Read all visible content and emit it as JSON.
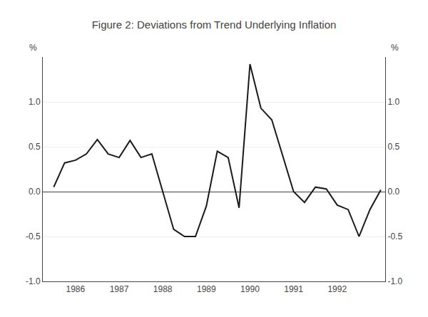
{
  "chart_data": {
    "type": "line",
    "title": "Figure 2: Deviations from Trend Underlying Inflation",
    "x": [
      1985.5,
      1985.75,
      1986.0,
      1986.25,
      1986.5,
      1986.75,
      1987.0,
      1987.25,
      1987.5,
      1987.75,
      1988.0,
      1988.25,
      1988.5,
      1988.75,
      1989.0,
      1989.25,
      1989.5,
      1989.75,
      1990.0,
      1990.25,
      1990.5,
      1991.0,
      1991.25,
      1991.5,
      1991.75,
      1992.0,
      1992.25,
      1992.5,
      1992.75,
      1993.0
    ],
    "values": [
      0.05,
      0.32,
      0.35,
      0.42,
      0.58,
      0.42,
      0.38,
      0.57,
      0.38,
      0.42,
      0.0,
      -0.42,
      -0.5,
      -0.5,
      -0.16,
      0.45,
      0.38,
      -0.18,
      1.42,
      0.93,
      0.8,
      0.0,
      -0.12,
      0.05,
      0.03,
      -0.15,
      -0.2,
      -0.5,
      -0.2,
      0.02
    ],
    "color": "#1a1a1a",
    "xlim": [
      1985.25,
      1993.1
    ],
    "xticks": [
      1986,
      1987,
      1988,
      1989,
      1990,
      1991,
      1992
    ],
    "ylim": [
      -1.0,
      1.5
    ],
    "yticks": [
      {
        "value": -1.0,
        "label": "-1.0"
      },
      -0.5,
      {
        "value": 0.0,
        "label": "0.0"
      },
      0.5,
      {
        "value": 1.0,
        "label": "1.0"
      }
    ],
    "ylabel": "%",
    "y2lim": [
      -1.0,
      1.5
    ],
    "y2ticks": [
      {
        "value": -1.0,
        "label": "-1.0"
      },
      -0.5,
      {
        "value": 0.0,
        "label": "0.0"
      },
      0.5,
      {
        "value": 1.0,
        "label": "1.0"
      }
    ],
    "y2label": "%",
    "grid": true
  }
}
